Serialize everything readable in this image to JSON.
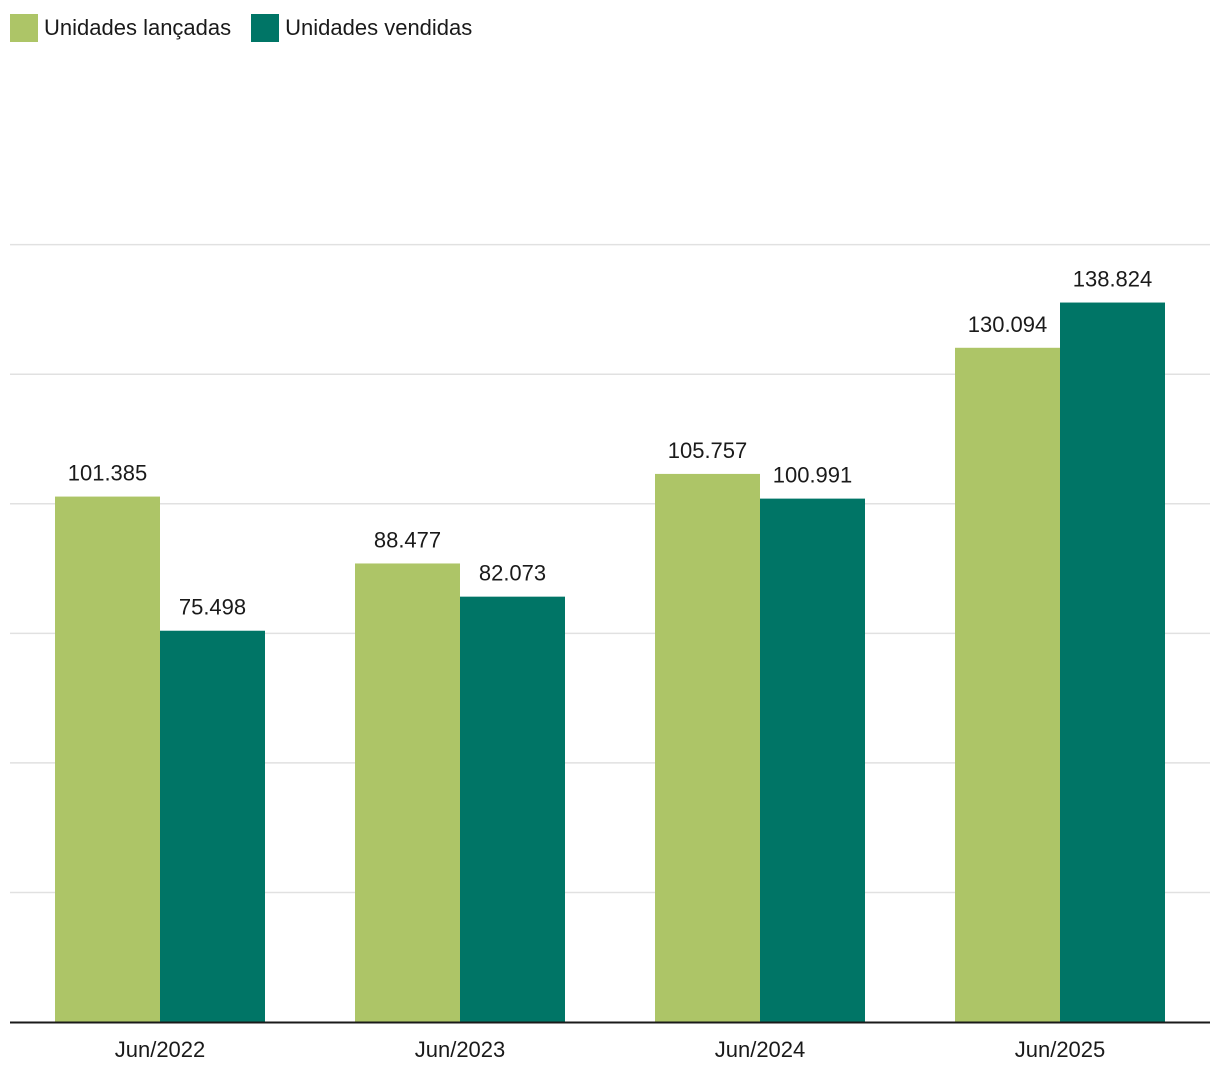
{
  "chart_data": {
    "type": "bar",
    "categories": [
      "Jun/2022",
      "Jun/2023",
      "Jun/2024",
      "Jun/2025"
    ],
    "series": [
      {
        "name": "Unidades lançadas",
        "values": [
          101385,
          88477,
          105757,
          130094
        ],
        "labels": [
          "101.385",
          "88.477",
          "105.757",
          "130.094"
        ],
        "color": "#adc567"
      },
      {
        "name": "Unidades vendidas",
        "values": [
          75498,
          82073,
          100991,
          138824
        ],
        "labels": [
          "75.498",
          "82.073",
          "100.991",
          "138.824"
        ],
        "color": "#007566"
      }
    ],
    "ylim": [
      0,
      150000
    ],
    "grid": true,
    "legend_position": "top-left",
    "gridline_color": "#e1e1e1",
    "axis_color": "#1a1a1a"
  }
}
